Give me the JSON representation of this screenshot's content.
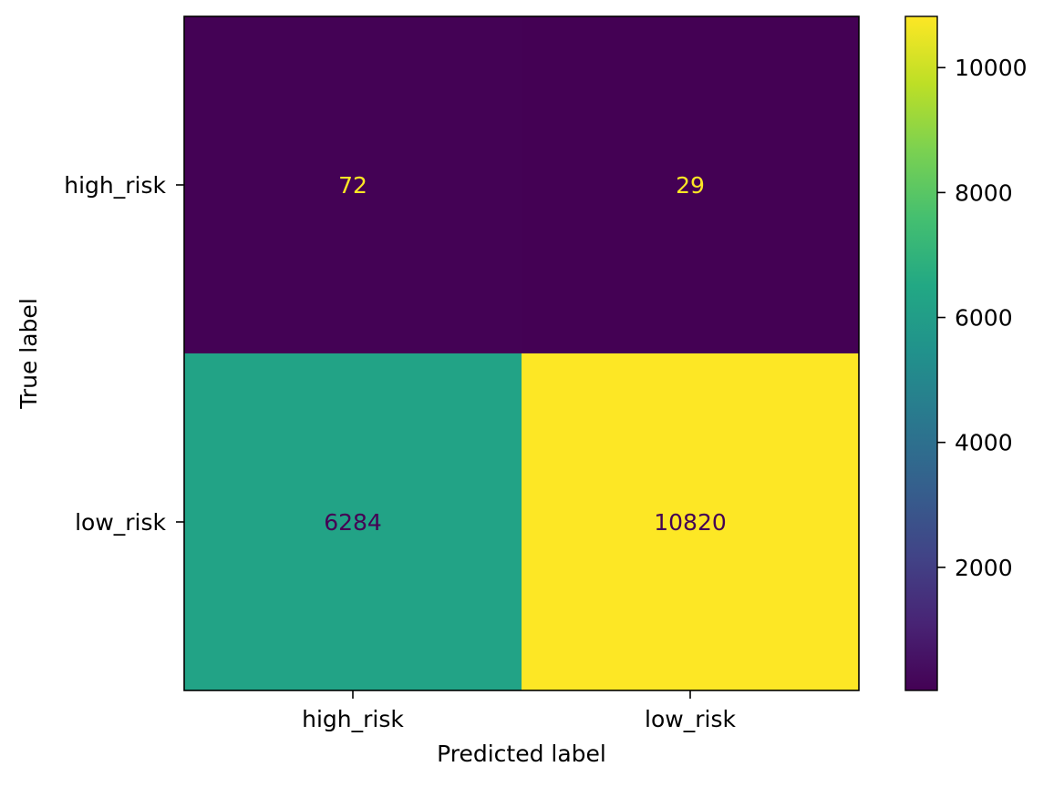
{
  "chart_data": {
    "type": "heatmap",
    "title": "",
    "xlabel": "Predicted label",
    "ylabel": "True label",
    "x_categories": [
      "high_risk",
      "low_risk"
    ],
    "y_categories": [
      "high_risk",
      "low_risk"
    ],
    "matrix": [
      [
        72,
        29
      ],
      [
        6284,
        10820
      ]
    ],
    "colormap": "viridis",
    "colorbar": {
      "range": [
        29,
        10820
      ],
      "ticks": [
        2000,
        4000,
        6000,
        8000,
        10000
      ],
      "tick_labels": [
        "2000",
        "4000",
        "6000",
        "8000",
        "10000"
      ]
    },
    "text_colors": {
      "on_dark": "#fde725",
      "on_light": "#440154"
    }
  }
}
